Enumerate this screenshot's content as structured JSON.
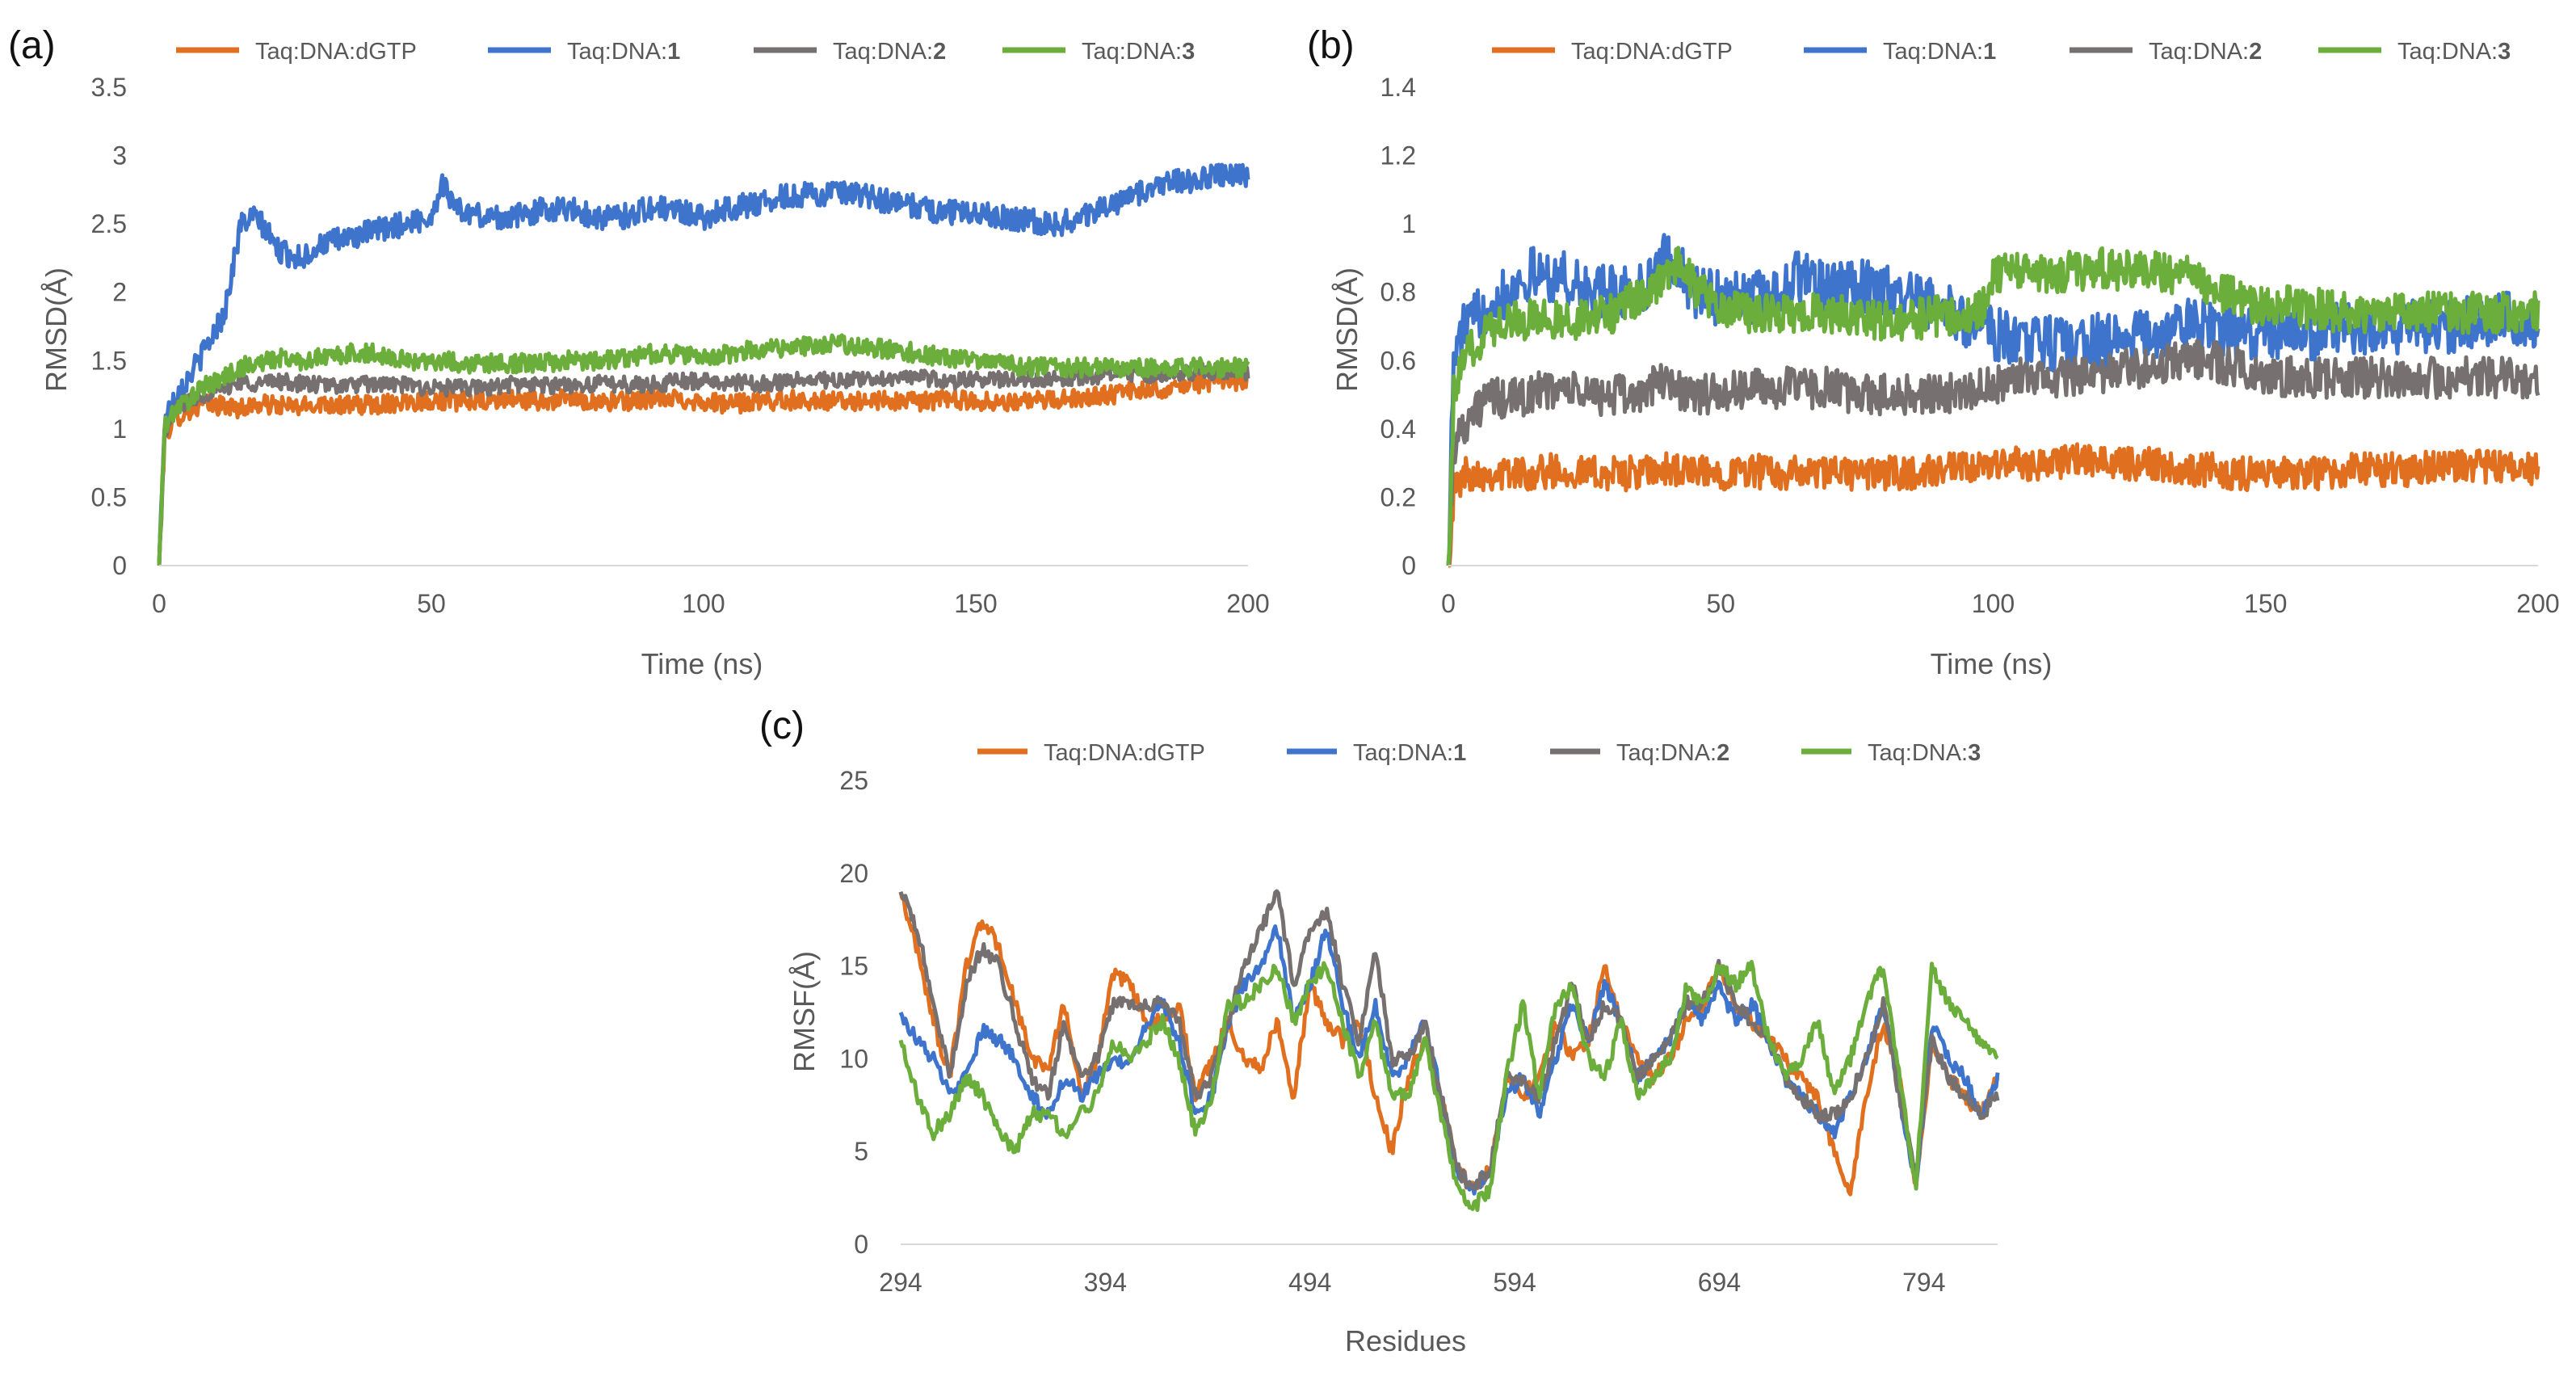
{
  "colors": {
    "dGTP": "#E0701F",
    "ligand1": "#3E74CC",
    "ligand2": "#767070",
    "ligand3": "#6BAE3C"
  },
  "chart_data": [
    {
      "panel": "(a)",
      "type": "line",
      "xlabel": "Time (ns)",
      "ylabel": "RMSD(Å)",
      "xlim": [
        0,
        200
      ],
      "ylim": [
        0,
        3.5
      ],
      "xticks": [
        "0",
        "50",
        "100",
        "150",
        "200"
      ],
      "yticks": [
        "0",
        "0.5",
        "1",
        "1.5",
        "2",
        "2.5",
        "3",
        "3.5"
      ],
      "x": [
        0,
        1,
        3,
        5,
        8,
        12,
        15,
        18,
        22,
        26,
        30,
        35,
        40,
        45,
        50,
        52,
        55,
        60,
        65,
        70,
        75,
        80,
        85,
        90,
        95,
        100,
        105,
        110,
        115,
        120,
        125,
        130,
        135,
        140,
        145,
        150,
        155,
        160,
        165,
        170,
        175,
        180,
        185,
        190,
        195,
        200
      ],
      "series": [
        {
          "name": "Taq:DNA:dGTP",
          "color_key": "dGTP",
          "noise": 0.07,
          "values": [
            0,
            0.95,
            1.08,
            1.12,
            1.18,
            1.17,
            1.15,
            1.18,
            1.17,
            1.16,
            1.19,
            1.17,
            1.18,
            1.2,
            1.21,
            1.21,
            1.2,
            1.2,
            1.22,
            1.2,
            1.22,
            1.2,
            1.2,
            1.22,
            1.22,
            1.2,
            1.18,
            1.2,
            1.21,
            1.21,
            1.2,
            1.21,
            1.2,
            1.2,
            1.22,
            1.2,
            1.2,
            1.2,
            1.21,
            1.24,
            1.25,
            1.28,
            1.3,
            1.33,
            1.35,
            1.35
          ]
        },
        {
          "name": "Taq:DNA:1",
          "color_key": "ligand1",
          "noise": 0.09,
          "values": [
            0,
            1.05,
            1.25,
            1.35,
            1.55,
            1.85,
            2.5,
            2.55,
            2.3,
            2.25,
            2.35,
            2.4,
            2.45,
            2.5,
            2.55,
            2.8,
            2.6,
            2.55,
            2.55,
            2.6,
            2.62,
            2.55,
            2.55,
            2.62,
            2.6,
            2.55,
            2.62,
            2.65,
            2.7,
            2.72,
            2.72,
            2.7,
            2.65,
            2.62,
            2.58,
            2.6,
            2.55,
            2.52,
            2.5,
            2.55,
            2.65,
            2.72,
            2.8,
            2.82,
            2.85,
            2.85
          ]
        },
        {
          "name": "Taq:DNA:2",
          "color_key": "ligand2",
          "noise": 0.06,
          "values": [
            0,
            0.95,
            1.15,
            1.2,
            1.25,
            1.3,
            1.35,
            1.33,
            1.35,
            1.33,
            1.32,
            1.32,
            1.33,
            1.32,
            1.3,
            1.3,
            1.3,
            1.3,
            1.33,
            1.32,
            1.32,
            1.33,
            1.33,
            1.32,
            1.35,
            1.35,
            1.34,
            1.33,
            1.35,
            1.36,
            1.35,
            1.36,
            1.38,
            1.37,
            1.35,
            1.36,
            1.36,
            1.37,
            1.37,
            1.38,
            1.4,
            1.4,
            1.4,
            1.42,
            1.42,
            1.42
          ]
        },
        {
          "name": "Taq:DNA:3",
          "color_key": "ligand3",
          "noise": 0.07,
          "values": [
            0,
            1.0,
            1.15,
            1.2,
            1.3,
            1.38,
            1.45,
            1.48,
            1.52,
            1.5,
            1.52,
            1.55,
            1.55,
            1.5,
            1.5,
            1.5,
            1.48,
            1.48,
            1.48,
            1.48,
            1.5,
            1.5,
            1.52,
            1.55,
            1.55,
            1.52,
            1.55,
            1.58,
            1.6,
            1.6,
            1.62,
            1.6,
            1.58,
            1.55,
            1.52,
            1.5,
            1.48,
            1.45,
            1.45,
            1.45,
            1.45,
            1.45,
            1.45,
            1.45,
            1.45,
            1.45
          ]
        }
      ]
    },
    {
      "panel": "(b)",
      "type": "line",
      "xlabel": "Time (ns)",
      "ylabel": "RMSD(Å)",
      "xlim": [
        0,
        200
      ],
      "ylim": [
        0,
        1.4
      ],
      "xticks": [
        "0",
        "50",
        "100",
        "150",
        "200"
      ],
      "yticks": [
        "0",
        "0.2",
        "0.4",
        "0.6",
        "0.8",
        "1",
        "1.2",
        "1.4"
      ],
      "x": [
        0,
        1,
        3,
        5,
        8,
        10,
        15,
        20,
        25,
        30,
        35,
        40,
        42,
        45,
        50,
        55,
        60,
        65,
        70,
        75,
        80,
        85,
        90,
        95,
        98,
        100,
        105,
        110,
        115,
        120,
        125,
        130,
        135,
        140,
        145,
        150,
        155,
        160,
        165,
        170,
        175,
        180,
        185,
        190,
        195,
        200
      ],
      "series": [
        {
          "name": "Taq:DNA:dGTP",
          "color_key": "dGTP",
          "noise": 0.05,
          "values": [
            0,
            0.22,
            0.27,
            0.27,
            0.27,
            0.27,
            0.27,
            0.28,
            0.27,
            0.27,
            0.27,
            0.28,
            0.28,
            0.27,
            0.27,
            0.28,
            0.27,
            0.27,
            0.27,
            0.27,
            0.27,
            0.27,
            0.28,
            0.28,
            0.28,
            0.3,
            0.3,
            0.3,
            0.31,
            0.3,
            0.3,
            0.3,
            0.28,
            0.28,
            0.27,
            0.27,
            0.27,
            0.27,
            0.28,
            0.28,
            0.28,
            0.29,
            0.29,
            0.29,
            0.28,
            0.28
          ]
        },
        {
          "name": "Taq:DNA:1",
          "color_key": "ligand1",
          "noise": 0.08,
          "values": [
            0,
            0.6,
            0.7,
            0.72,
            0.78,
            0.8,
            0.85,
            0.85,
            0.8,
            0.8,
            0.8,
            0.9,
            0.88,
            0.8,
            0.78,
            0.78,
            0.8,
            0.85,
            0.8,
            0.82,
            0.8,
            0.78,
            0.75,
            0.72,
            0.7,
            0.68,
            0.66,
            0.65,
            0.65,
            0.66,
            0.66,
            0.68,
            0.7,
            0.7,
            0.68,
            0.68,
            0.68,
            0.68,
            0.7,
            0.7,
            0.7,
            0.7,
            0.7,
            0.72,
            0.72,
            0.72
          ]
        },
        {
          "name": "Taq:DNA:2",
          "color_key": "ligand2",
          "noise": 0.06,
          "values": [
            0,
            0.35,
            0.42,
            0.45,
            0.5,
            0.48,
            0.5,
            0.52,
            0.5,
            0.5,
            0.5,
            0.55,
            0.52,
            0.5,
            0.5,
            0.52,
            0.52,
            0.52,
            0.52,
            0.5,
            0.5,
            0.5,
            0.5,
            0.52,
            0.52,
            0.52,
            0.55,
            0.55,
            0.55,
            0.55,
            0.58,
            0.58,
            0.6,
            0.6,
            0.58,
            0.56,
            0.55,
            0.55,
            0.55,
            0.55,
            0.55,
            0.55,
            0.55,
            0.55,
            0.55,
            0.55
          ]
        },
        {
          "name": "Taq:DNA:3",
          "color_key": "ligand3",
          "noise": 0.06,
          "values": [
            0,
            0.5,
            0.6,
            0.65,
            0.7,
            0.72,
            0.72,
            0.72,
            0.72,
            0.74,
            0.78,
            0.85,
            0.88,
            0.82,
            0.75,
            0.74,
            0.74,
            0.74,
            0.74,
            0.73,
            0.72,
            0.72,
            0.73,
            0.74,
            0.76,
            0.85,
            0.86,
            0.86,
            0.86,
            0.87,
            0.86,
            0.86,
            0.85,
            0.82,
            0.78,
            0.76,
            0.76,
            0.75,
            0.74,
            0.74,
            0.74,
            0.74,
            0.74,
            0.74,
            0.74,
            0.74
          ]
        }
      ]
    },
    {
      "panel": "(c)",
      "type": "line",
      "xlabel": "Residues",
      "ylabel": "RMSF(Å)",
      "xlim": [
        294,
        830
      ],
      "ylim": [
        0,
        25
      ],
      "xticks": [
        "294",
        "394",
        "494",
        "594",
        "694",
        "794"
      ],
      "yticks": [
        "0",
        "5",
        "10",
        "15",
        "20",
        "25"
      ],
      "x": [
        294,
        302,
        310,
        318,
        326,
        334,
        342,
        350,
        358,
        366,
        374,
        382,
        390,
        398,
        406,
        414,
        422,
        430,
        438,
        446,
        454,
        462,
        470,
        478,
        486,
        494,
        502,
        510,
        518,
        526,
        534,
        542,
        550,
        558,
        566,
        574,
        582,
        590,
        598,
        606,
        614,
        622,
        630,
        638,
        646,
        654,
        662,
        670,
        678,
        686,
        694,
        702,
        710,
        718,
        726,
        734,
        742,
        750,
        758,
        766,
        774,
        782,
        790,
        798,
        806,
        814,
        822,
        830
      ],
      "series": [
        {
          "name": "Taq:DNA:dGTP",
          "color_key": "dGTP",
          "noise": 0.4,
          "values": [
            19,
            16,
            12,
            9,
            15,
            17.5,
            16,
            13,
            10,
            9.5,
            13,
            8,
            10,
            14.5,
            14,
            12,
            12,
            13,
            8,
            10,
            12,
            10,
            9.5,
            12,
            8,
            14,
            12,
            11,
            12,
            8,
            5,
            9,
            11,
            8,
            4,
            3,
            4,
            9,
            8,
            9,
            12,
            10,
            11,
            15,
            12,
            10,
            9,
            10,
            12,
            13,
            15,
            13,
            12,
            11,
            10,
            9,
            8,
            5,
            3,
            8,
            12,
            9,
            3,
            11,
            9,
            8,
            7,
            9
          ]
        },
        {
          "name": "Taq:DNA:1",
          "color_key": "ligand1",
          "noise": 0.4,
          "values": [
            12.5,
            11,
            10,
            8,
            9,
            11.5,
            11,
            10,
            8,
            7,
            9,
            8,
            9,
            10,
            9.5,
            12,
            13,
            11,
            7,
            8,
            12,
            14,
            15,
            17,
            12,
            14,
            17,
            13,
            10,
            13,
            9,
            10,
            12,
            8,
            4,
            3,
            4,
            8,
            9,
            7,
            10,
            13,
            11,
            14,
            12,
            9,
            10,
            11,
            13,
            12,
            14,
            12,
            13,
            11,
            9,
            8,
            7,
            6,
            8,
            10,
            13,
            8,
            3,
            12,
            10,
            9,
            7,
            9
          ]
        },
        {
          "name": "Taq:DNA:2",
          "color_key": "ligand2",
          "noise": 0.4,
          "values": [
            19,
            17,
            13,
            9,
            14,
            16,
            15,
            12,
            9,
            8,
            12,
            9,
            10,
            13,
            13,
            13,
            13,
            12,
            8,
            9,
            12,
            15,
            17,
            19,
            14,
            17,
            18,
            14,
            11,
            16,
            10,
            10,
            12,
            8,
            4,
            3,
            4,
            9,
            9,
            8,
            11,
            14,
            11,
            13,
            12,
            9,
            10,
            11,
            13,
            13,
            15,
            13,
            12,
            11,
            9,
            8,
            7,
            7,
            8,
            10,
            13,
            8,
            4,
            11,
            9,
            8,
            7,
            8
          ]
        },
        {
          "name": "Taq:DNA:3",
          "color_key": "ligand3",
          "noise": 0.4,
          "values": [
            11,
            8,
            6,
            7,
            9,
            8,
            6,
            5,
            7,
            7,
            6,
            7,
            8,
            11,
            10,
            11,
            12,
            10,
            6,
            8,
            13,
            13,
            14,
            15,
            12,
            14,
            15,
            12,
            9,
            12,
            8,
            8,
            11,
            7,
            3,
            2,
            3,
            9,
            13,
            8,
            13,
            14,
            10,
            9,
            12,
            8,
            9,
            10,
            14,
            13,
            15,
            14,
            15,
            11,
            9,
            10,
            12,
            8,
            10,
            13,
            15,
            9,
            3,
            15,
            13,
            12,
            11,
            10
          ]
        }
      ]
    }
  ]
}
